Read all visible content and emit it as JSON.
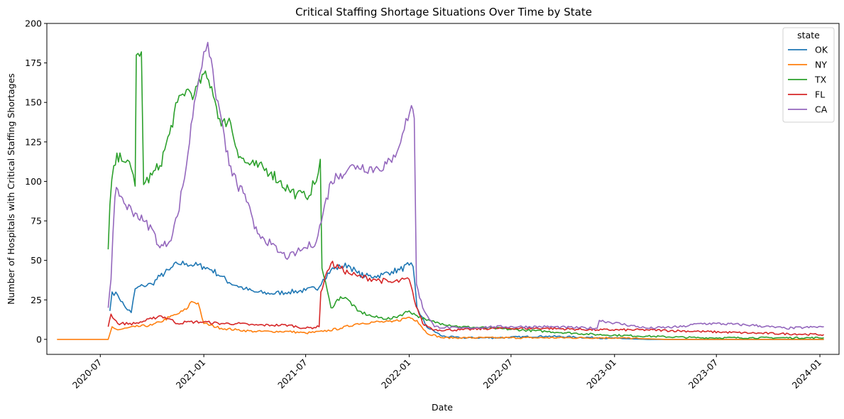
{
  "chart_data": {
    "type": "line",
    "title": "Critical Staffing Shortage Situations Over Time by State",
    "xlabel": "Date",
    "ylabel": "Number of Hospitals with Critical Staffing Shortages",
    "x_range": [
      "2020-03-28",
      "2024-02-04"
    ],
    "ylim": [
      -9.5,
      200
    ],
    "x_ticks": [
      "2020-07",
      "2021-01",
      "2021-07",
      "2022-01",
      "2022-07",
      "2023-01",
      "2023-07",
      "2024-01"
    ],
    "y_ticks": [
      0,
      25,
      50,
      75,
      100,
      125,
      150,
      175,
      200
    ],
    "grid": false,
    "legend": {
      "title": "state",
      "placement": "top-right"
    },
    "series": [
      {
        "name": "OK",
        "color": "#1f77b4",
        "points": [
          [
            "2020-07-18",
            18
          ],
          [
            "2020-07-22",
            30
          ],
          [
            "2020-08-01",
            28
          ],
          [
            "2020-08-15",
            20
          ],
          [
            "2020-08-25",
            17
          ],
          [
            "2020-09-01",
            32
          ],
          [
            "2020-09-15",
            34
          ],
          [
            "2020-10-01",
            35
          ],
          [
            "2020-10-15",
            40
          ],
          [
            "2020-11-01",
            44
          ],
          [
            "2020-11-15",
            48
          ],
          [
            "2020-12-01",
            48
          ],
          [
            "2020-12-15",
            47
          ],
          [
            "2021-01-01",
            46
          ],
          [
            "2021-01-15",
            44
          ],
          [
            "2021-02-01",
            40
          ],
          [
            "2021-02-15",
            36
          ],
          [
            "2021-03-01",
            34
          ],
          [
            "2021-03-15",
            32
          ],
          [
            "2021-04-01",
            30
          ],
          [
            "2021-05-01",
            29
          ],
          [
            "2021-06-01",
            30
          ],
          [
            "2021-07-01",
            31
          ],
          [
            "2021-07-25",
            33
          ],
          [
            "2021-08-01",
            38
          ],
          [
            "2021-08-15",
            44
          ],
          [
            "2021-09-01",
            46
          ],
          [
            "2021-09-15",
            47
          ],
          [
            "2021-10-01",
            42
          ],
          [
            "2021-10-15",
            40
          ],
          [
            "2021-11-01",
            40
          ],
          [
            "2021-11-15",
            41
          ],
          [
            "2021-12-01",
            43
          ],
          [
            "2021-12-15",
            44
          ],
          [
            "2022-01-01",
            47
          ],
          [
            "2022-01-08",
            46
          ],
          [
            "2022-01-15",
            20
          ],
          [
            "2022-02-01",
            8
          ],
          [
            "2022-03-01",
            2
          ],
          [
            "2022-04-01",
            1
          ],
          [
            "2022-06-01",
            1
          ],
          [
            "2022-09-01",
            2
          ],
          [
            "2022-12-01",
            1
          ],
          [
            "2023-03-01",
            0
          ],
          [
            "2023-07-01",
            0
          ],
          [
            "2024-01-08",
            0
          ]
        ]
      },
      {
        "name": "NY",
        "color": "#ff7f0e",
        "points": [
          [
            "2020-04-15",
            0
          ],
          [
            "2020-07-15",
            0
          ],
          [
            "2020-07-22",
            8
          ],
          [
            "2020-08-01",
            6
          ],
          [
            "2020-09-01",
            8
          ],
          [
            "2020-10-01",
            9
          ],
          [
            "2020-10-15",
            11
          ],
          [
            "2020-11-01",
            14
          ],
          [
            "2020-11-15",
            16
          ],
          [
            "2020-12-01",
            19
          ],
          [
            "2020-12-10",
            24
          ],
          [
            "2020-12-22",
            23
          ],
          [
            "2021-01-01",
            10
          ],
          [
            "2021-02-01",
            7
          ],
          [
            "2021-03-01",
            6
          ],
          [
            "2021-04-01",
            5
          ],
          [
            "2021-05-01",
            5
          ],
          [
            "2021-06-01",
            5
          ],
          [
            "2021-07-01",
            4
          ],
          [
            "2021-08-01",
            5
          ],
          [
            "2021-09-01",
            7
          ],
          [
            "2021-10-01",
            10
          ],
          [
            "2021-11-01",
            11
          ],
          [
            "2021-12-01",
            11
          ],
          [
            "2022-01-01",
            14
          ],
          [
            "2022-01-15",
            12
          ],
          [
            "2022-02-01",
            4
          ],
          [
            "2022-03-01",
            1
          ],
          [
            "2022-04-01",
            1
          ],
          [
            "2022-06-01",
            1
          ],
          [
            "2022-09-01",
            1
          ],
          [
            "2023-01-01",
            1
          ],
          [
            "2023-04-01",
            0
          ],
          [
            "2023-07-01",
            0
          ],
          [
            "2024-01-08",
            0
          ]
        ]
      },
      {
        "name": "TX",
        "color": "#2ca02c",
        "points": [
          [
            "2020-07-15",
            57
          ],
          [
            "2020-07-18",
            85
          ],
          [
            "2020-07-25",
            110
          ],
          [
            "2020-08-05",
            118
          ],
          [
            "2020-08-15",
            112
          ],
          [
            "2020-08-25",
            108
          ],
          [
            "2020-09-01",
            97
          ],
          [
            "2020-09-03",
            180
          ],
          [
            "2020-09-12",
            182
          ],
          [
            "2020-09-16",
            98
          ],
          [
            "2020-10-01",
            104
          ],
          [
            "2020-10-15",
            110
          ],
          [
            "2020-11-01",
            130
          ],
          [
            "2020-11-15",
            150
          ],
          [
            "2020-12-01",
            158
          ],
          [
            "2020-12-15",
            155
          ],
          [
            "2021-01-01",
            168
          ],
          [
            "2021-01-15",
            160
          ],
          [
            "2021-02-01",
            135
          ],
          [
            "2021-02-15",
            140
          ],
          [
            "2021-03-01",
            120
          ],
          [
            "2021-03-15",
            112
          ],
          [
            "2021-04-01",
            110
          ],
          [
            "2021-05-01",
            106
          ],
          [
            "2021-05-15",
            100
          ],
          [
            "2021-06-01",
            95
          ],
          [
            "2021-06-15",
            92
          ],
          [
            "2021-07-01",
            90
          ],
          [
            "2021-07-20",
            100
          ],
          [
            "2021-07-27",
            114
          ],
          [
            "2021-07-30",
            45
          ],
          [
            "2021-08-15",
            20
          ],
          [
            "2021-09-01",
            27
          ],
          [
            "2021-09-15",
            25
          ],
          [
            "2021-10-01",
            18
          ],
          [
            "2021-11-01",
            14
          ],
          [
            "2021-12-01",
            13
          ],
          [
            "2022-01-01",
            18
          ],
          [
            "2022-01-15",
            15
          ],
          [
            "2022-02-01",
            12
          ],
          [
            "2022-03-01",
            10
          ],
          [
            "2022-04-01",
            8
          ],
          [
            "2022-06-01",
            7
          ],
          [
            "2022-09-01",
            5
          ],
          [
            "2022-12-01",
            3
          ],
          [
            "2023-03-01",
            2
          ],
          [
            "2023-06-01",
            1
          ],
          [
            "2023-09-01",
            1
          ],
          [
            "2024-01-08",
            1
          ]
        ]
      },
      {
        "name": "FL",
        "color": "#d62728",
        "points": [
          [
            "2020-07-15",
            8
          ],
          [
            "2020-07-20",
            16
          ],
          [
            "2020-08-01",
            10
          ],
          [
            "2020-09-01",
            10
          ],
          [
            "2020-10-01",
            13
          ],
          [
            "2020-10-15",
            15
          ],
          [
            "2020-11-01",
            13
          ],
          [
            "2020-11-15",
            10
          ],
          [
            "2020-12-01",
            11
          ],
          [
            "2021-01-01",
            11
          ],
          [
            "2021-02-01",
            10
          ],
          [
            "2021-03-01",
            10
          ],
          [
            "2021-04-01",
            9
          ],
          [
            "2021-05-01",
            9
          ],
          [
            "2021-06-01",
            9
          ],
          [
            "2021-07-01",
            7
          ],
          [
            "2021-07-25",
            8
          ],
          [
            "2021-07-28",
            30
          ],
          [
            "2021-08-05",
            40
          ],
          [
            "2021-08-15",
            48
          ],
          [
            "2021-09-01",
            45
          ],
          [
            "2021-09-15",
            42
          ],
          [
            "2021-10-01",
            40
          ],
          [
            "2021-11-01",
            38
          ],
          [
            "2021-12-01",
            36
          ],
          [
            "2022-01-01",
            38
          ],
          [
            "2022-01-10",
            25
          ],
          [
            "2022-01-25",
            10
          ],
          [
            "2022-02-15",
            6
          ],
          [
            "2022-04-01",
            6
          ],
          [
            "2022-06-01",
            7
          ],
          [
            "2022-09-01",
            7
          ],
          [
            "2022-12-01",
            6
          ],
          [
            "2023-03-01",
            6
          ],
          [
            "2023-06-01",
            5
          ],
          [
            "2023-09-01",
            4
          ],
          [
            "2024-01-08",
            3
          ]
        ]
      },
      {
        "name": "CA",
        "color": "#9467bd",
        "points": [
          [
            "2020-07-15",
            20
          ],
          [
            "2020-07-20",
            38
          ],
          [
            "2020-07-27",
            90
          ],
          [
            "2020-08-01",
            95
          ],
          [
            "2020-08-15",
            85
          ],
          [
            "2020-09-01",
            80
          ],
          [
            "2020-09-15",
            75
          ],
          [
            "2020-10-01",
            70
          ],
          [
            "2020-10-15",
            58
          ],
          [
            "2020-11-01",
            62
          ],
          [
            "2020-11-15",
            78
          ],
          [
            "2020-12-01",
            110
          ],
          [
            "2020-12-15",
            150
          ],
          [
            "2020-12-25",
            168
          ],
          [
            "2021-01-01",
            182
          ],
          [
            "2021-01-08",
            188
          ],
          [
            "2021-01-20",
            160
          ],
          [
            "2021-02-01",
            140
          ],
          [
            "2021-02-15",
            110
          ],
          [
            "2021-03-01",
            98
          ],
          [
            "2021-03-15",
            92
          ],
          [
            "2021-04-01",
            70
          ],
          [
            "2021-04-15",
            65
          ],
          [
            "2021-05-01",
            60
          ],
          [
            "2021-05-15",
            55
          ],
          [
            "2021-06-01",
            52
          ],
          [
            "2021-06-15",
            55
          ],
          [
            "2021-07-01",
            58
          ],
          [
            "2021-07-20",
            62
          ],
          [
            "2021-08-01",
            80
          ],
          [
            "2021-08-15",
            100
          ],
          [
            "2021-09-01",
            105
          ],
          [
            "2021-09-15",
            108
          ],
          [
            "2021-10-01",
            110
          ],
          [
            "2021-11-01",
            108
          ],
          [
            "2021-12-01",
            112
          ],
          [
            "2021-12-20",
            130
          ],
          [
            "2022-01-05",
            148
          ],
          [
            "2022-01-10",
            140
          ],
          [
            "2022-01-14",
            35
          ],
          [
            "2022-01-25",
            20
          ],
          [
            "2022-02-15",
            8
          ],
          [
            "2022-04-01",
            7
          ],
          [
            "2022-06-01",
            8
          ],
          [
            "2022-09-01",
            8
          ],
          [
            "2022-12-01",
            7
          ],
          [
            "2022-12-05",
            12
          ],
          [
            "2023-03-01",
            7
          ],
          [
            "2023-05-01",
            8
          ],
          [
            "2023-06-01",
            10
          ],
          [
            "2023-07-01",
            10
          ],
          [
            "2023-09-01",
            9
          ],
          [
            "2023-11-01",
            7
          ],
          [
            "2024-01-08",
            8
          ]
        ]
      }
    ]
  }
}
